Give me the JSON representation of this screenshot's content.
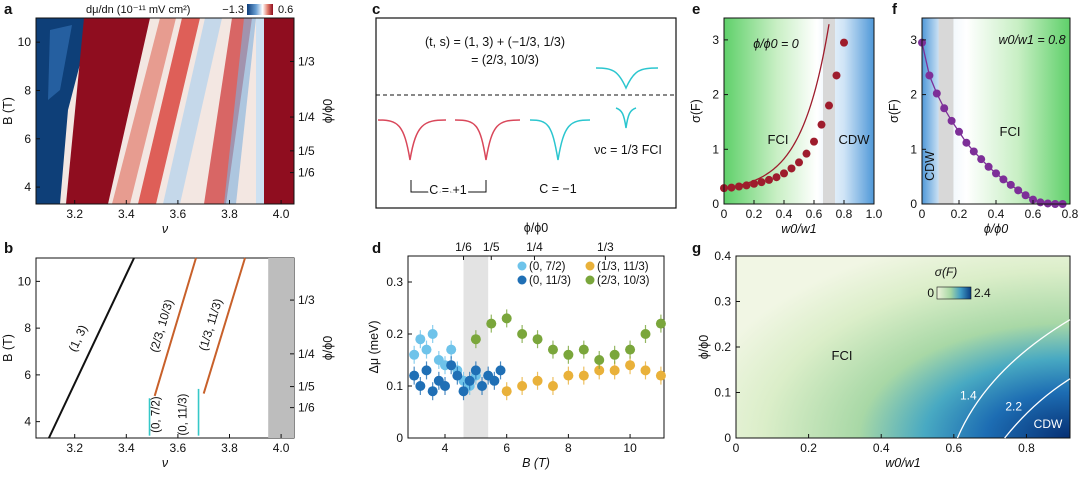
{
  "panel_labels": {
    "a": "a",
    "b": "b",
    "c": "c",
    "d": "d",
    "e": "e",
    "f": "f",
    "g": "g"
  },
  "chart_data": [
    {
      "panel": "a",
      "type": "heatmap",
      "colorbar": {
        "label": "dμ/dn (10⁻¹¹ mV cm²)",
        "min": -1.3,
        "max": 0.6,
        "min_label": "−1.3",
        "max_label": "0.6",
        "low_color": "#0b3c7a",
        "mid_color": "#ffffff",
        "high_color": "#8f0d1f"
      },
      "xlabel": "ν",
      "ylabel": "B (T)",
      "ylabel_right": "ϕ/ϕ0",
      "xlim": [
        3.05,
        4.05
      ],
      "ylim": [
        3.3,
        11
      ],
      "xticks": [
        3.2,
        3.4,
        3.6,
        3.8,
        4.0
      ],
      "xtick_labels": [
        "3.2",
        "3.4",
        "3.6",
        "3.8",
        "4.0"
      ],
      "yticks": [
        4,
        6,
        8,
        10
      ],
      "ytick_labels": [
        "4",
        "6",
        "8",
        "10"
      ],
      "right_ticks": [
        {
          "label": "1/3",
          "B": 9.2
        },
        {
          "label": "1/4",
          "B": 6.9
        },
        {
          "label": "1/5",
          "B": 5.5
        },
        {
          "label": "1/6",
          "B": 4.6
        }
      ]
    },
    {
      "panel": "b",
      "type": "line",
      "xlabel": "ν",
      "ylabel": "B (T)",
      "ylabel_right": "ϕ/ϕ0",
      "xlim": [
        3.05,
        4.05
      ],
      "ylim": [
        3.3,
        11
      ],
      "xticks": [
        3.2,
        3.4,
        3.6,
        3.8,
        4.0
      ],
      "xtick_labels": [
        "3.2",
        "3.4",
        "3.6",
        "3.8",
        "4.0"
      ],
      "yticks": [
        4,
        6,
        8,
        10
      ],
      "ytick_labels": [
        "4",
        "6",
        "8",
        "10"
      ],
      "right_ticks": [
        {
          "label": "1/3",
          "B": 9.2
        },
        {
          "label": "1/4",
          "B": 6.9
        },
        {
          "label": "1/5",
          "B": 5.5
        },
        {
          "label": "1/6",
          "B": 4.6
        }
      ],
      "shaded_nu": [
        3.95,
        4.05
      ],
      "series": [
        {
          "name": "(1, 3)",
          "color": "#111111",
          "x": [
            3.1,
            3.43
          ],
          "y": [
            3.3,
            11
          ]
        },
        {
          "name": "(2/3, 10/3)",
          "color": "#c8602a",
          "x": [
            3.51,
            3.67
          ],
          "y": [
            5.1,
            11
          ]
        },
        {
          "name": "(1/3, 11/3)",
          "color": "#c8602a",
          "x": [
            3.7,
            3.86
          ],
          "y": [
            5.2,
            11
          ]
        }
      ],
      "bracket_labels": [
        "(0, 7/2)",
        "(0, 11/3)"
      ],
      "bracket_color": "#35c8c8"
    },
    {
      "panel": "c",
      "type": "diagram",
      "equation_line1": "(t, s) = (1, 3) + (−1/3, 1/3)",
      "equation_line2": "= (2/3, 10/3)",
      "chern_plus": "C = +1",
      "chern_minus": "C = −1",
      "fci_label": "νc = 1/3 FCI",
      "red_color": "#d9475a",
      "cyan_color": "#2bc6cf"
    },
    {
      "panel": "d",
      "type": "scatter",
      "xlabel": "B (T)",
      "ylabel": "Δμ (meV)",
      "top_label": "ϕ/ϕ0",
      "xlim": [
        2.8,
        11.1
      ],
      "ylim": [
        0,
        0.35
      ],
      "xticks": [
        4,
        6,
        8,
        10
      ],
      "xtick_labels": [
        "4",
        "6",
        "8",
        "10"
      ],
      "yticks": [
        0,
        0.1,
        0.2,
        0.3
      ],
      "ytick_labels": [
        "0",
        "0.1",
        "0.2",
        "0.3"
      ],
      "top_ticks": [
        {
          "label": "1/6",
          "B": 4.6
        },
        {
          "label": "1/5",
          "B": 5.5
        },
        {
          "label": "1/4",
          "B": 6.9
        },
        {
          "label": "1/3",
          "B": 9.2
        }
      ],
      "shaded_B": [
        4.6,
        5.4
      ],
      "series": [
        {
          "name": "(0, 7/2)",
          "color": "#6ec3ea",
          "x": [
            3.0,
            3.2,
            3.4,
            3.6,
            3.8,
            4.0,
            4.2,
            4.4,
            4.6,
            4.8,
            5.0
          ],
          "y": [
            0.16,
            0.19,
            0.17,
            0.2,
            0.15,
            0.14,
            0.17,
            0.13,
            0.11,
            0.1,
            0.12
          ]
        },
        {
          "name": "(0, 11/3)",
          "color": "#1f6fb5",
          "x": [
            3.0,
            3.2,
            3.4,
            3.6,
            3.8,
            4.0,
            4.2,
            4.4,
            4.6,
            4.8,
            5.0,
            5.2,
            5.4,
            5.6,
            5.8
          ],
          "y": [
            0.12,
            0.1,
            0.13,
            0.09,
            0.11,
            0.1,
            0.14,
            0.12,
            0.09,
            0.11,
            0.13,
            0.1,
            0.12,
            0.11,
            0.13
          ]
        },
        {
          "name": "(1/3, 11/3)",
          "color": "#e9b13a",
          "x": [
            6.0,
            6.5,
            7.0,
            7.5,
            8.0,
            8.5,
            9.0,
            9.5,
            10.0,
            10.5,
            11.0
          ],
          "y": [
            0.09,
            0.1,
            0.11,
            0.1,
            0.12,
            0.12,
            0.13,
            0.13,
            0.14,
            0.13,
            0.12
          ]
        },
        {
          "name": "(2/3, 10/3)",
          "color": "#7aa63b",
          "x": [
            5.0,
            5.5,
            6.0,
            6.5,
            7.0,
            7.5,
            8.0,
            8.5,
            9.0,
            9.5,
            10.0,
            10.5,
            11.0
          ],
          "y": [
            0.19,
            0.22,
            0.23,
            0.2,
            0.19,
            0.17,
            0.16,
            0.17,
            0.15,
            0.16,
            0.17,
            0.2,
            0.22
          ]
        }
      ]
    },
    {
      "panel": "e",
      "type": "line",
      "title": "ϕ/ϕ0 = 0",
      "xlabel": "w0/w1",
      "ylabel": "σ(F)",
      "xlim": [
        0,
        1
      ],
      "ylim": [
        0,
        3.4
      ],
      "xticks": [
        0,
        0.2,
        0.4,
        0.6,
        0.8,
        1.0
      ],
      "xtick_labels": [
        "0",
        "0.2",
        "0.4",
        "0.6",
        "0.8",
        "1.0"
      ],
      "yticks": [
        0,
        1,
        2,
        3
      ],
      "ytick_labels": [
        "0",
        "1",
        "2",
        "3"
      ],
      "shaded_x": [
        0.66,
        0.74
      ],
      "region_left": "FCI",
      "region_right": "CDW",
      "marker_color": "#9e1c2c",
      "x": [
        0,
        0.05,
        0.1,
        0.15,
        0.2,
        0.25,
        0.3,
        0.35,
        0.4,
        0.45,
        0.5,
        0.55,
        0.6,
        0.65,
        0.7,
        0.75,
        0.8
      ],
      "y": [
        0.29,
        0.3,
        0.32,
        0.34,
        0.37,
        0.4,
        0.44,
        0.49,
        0.56,
        0.65,
        0.76,
        0.92,
        1.14,
        1.45,
        1.8,
        2.35,
        2.95
      ]
    },
    {
      "panel": "f",
      "type": "line",
      "title": "w0/w1 = 0.8",
      "xlabel": "ϕ/ϕ0",
      "ylabel": "σ(F)",
      "xlim": [
        0,
        0.8
      ],
      "ylim": [
        0,
        3.4
      ],
      "xticks": [
        0,
        0.2,
        0.4,
        0.6,
        0.8
      ],
      "xtick_labels": [
        "0",
        "0.2",
        "0.4",
        "0.6",
        "0.8"
      ],
      "yticks": [
        0,
        1,
        2,
        3
      ],
      "ytick_labels": [
        "0",
        "1",
        "2",
        "3"
      ],
      "shaded_x": [
        0.09,
        0.17
      ],
      "region_left": "CDW",
      "region_right": "FCI",
      "marker_color": "#7d2f98",
      "x": [
        0,
        0.04,
        0.08,
        0.12,
        0.16,
        0.2,
        0.24,
        0.28,
        0.32,
        0.36,
        0.4,
        0.44,
        0.48,
        0.52,
        0.56,
        0.6,
        0.64,
        0.68,
        0.72,
        0.76
      ],
      "y": [
        2.95,
        2.35,
        2.02,
        1.75,
        1.52,
        1.32,
        1.12,
        0.96,
        0.82,
        0.68,
        0.56,
        0.45,
        0.35,
        0.25,
        0.16,
        0.08,
        0.03,
        0.01,
        0.0,
        0.0
      ]
    },
    {
      "panel": "g",
      "type": "heatmap",
      "xlabel": "w0/w1",
      "ylabel": "ϕ/ϕ0",
      "xlim": [
        0,
        0.92
      ],
      "ylim": [
        0,
        0.4
      ],
      "xticks": [
        0,
        0.2,
        0.4,
        0.6,
        0.8
      ],
      "xtick_labels": [
        "0",
        "0.2",
        "0.4",
        "0.6",
        "0.8"
      ],
      "yticks": [
        0,
        0.1,
        0.2,
        0.3,
        0.4
      ],
      "ytick_labels": [
        "0",
        "0.1",
        "0.2",
        "0.3",
        "0.4"
      ],
      "colorbar": {
        "label": "σ(F)",
        "min": 0,
        "max": 2.4,
        "min_label": "0",
        "max_label": "2.4",
        "low_color": "#eef4dc",
        "high_color": "#0a3d82"
      },
      "contours": [
        {
          "label": "1.4",
          "w_at_phi0": 0.61
        },
        {
          "label": "2.2",
          "w_at_phi0": 0.74
        }
      ],
      "region_fci": "FCI",
      "region_cdw": "CDW"
    }
  ]
}
